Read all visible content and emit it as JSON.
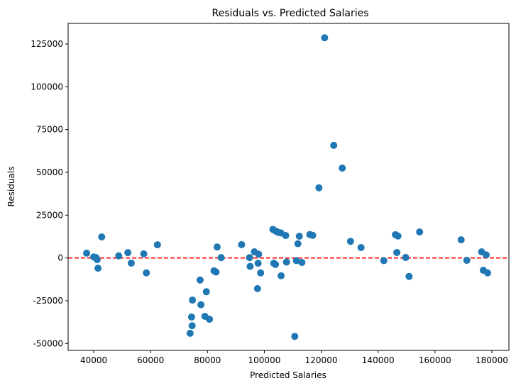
{
  "chart_data": {
    "type": "scatter",
    "title": "Residuals vs. Predicted Salaries",
    "xlabel": "Predicted Salaries",
    "ylabel": "Residuals",
    "xlim": [
      31000,
      186000
    ],
    "ylim": [
      -54000,
      137000
    ],
    "xticks": [
      40000,
      60000,
      80000,
      100000,
      120000,
      140000,
      160000,
      180000
    ],
    "yticks": [
      -50000,
      -25000,
      0,
      25000,
      50000,
      75000,
      100000,
      125000
    ],
    "grid": false,
    "legend": "none",
    "point_color": "#1f77b4",
    "reference_line": {
      "y": 0,
      "color": "#ff0000",
      "style": "dashed"
    },
    "points": [
      {
        "x": 37500,
        "y": 2800
      },
      {
        "x": 40000,
        "y": 600
      },
      {
        "x": 40800,
        "y": 200
      },
      {
        "x": 41200,
        "y": -1000
      },
      {
        "x": 41500,
        "y": -6000
      },
      {
        "x": 42800,
        "y": 12300
      },
      {
        "x": 48800,
        "y": 1200
      },
      {
        "x": 52000,
        "y": 3100
      },
      {
        "x": 53200,
        "y": -3000
      },
      {
        "x": 57600,
        "y": 2400
      },
      {
        "x": 58500,
        "y": -8700
      },
      {
        "x": 62400,
        "y": 7700
      },
      {
        "x": 73900,
        "y": -44000
      },
      {
        "x": 74400,
        "y": -34500
      },
      {
        "x": 74600,
        "y": -39600
      },
      {
        "x": 74700,
        "y": -24600
      },
      {
        "x": 77400,
        "y": -12900
      },
      {
        "x": 77700,
        "y": -27300
      },
      {
        "x": 79100,
        "y": -34100
      },
      {
        "x": 79600,
        "y": -19700
      },
      {
        "x": 80700,
        "y": -35800
      },
      {
        "x": 82300,
        "y": -7500
      },
      {
        "x": 83000,
        "y": -8200
      },
      {
        "x": 83400,
        "y": 6400
      },
      {
        "x": 84800,
        "y": 200
      },
      {
        "x": 92000,
        "y": 7800
      },
      {
        "x": 94800,
        "y": 200
      },
      {
        "x": 95000,
        "y": -4900
      },
      {
        "x": 96500,
        "y": 3600
      },
      {
        "x": 97600,
        "y": -17900
      },
      {
        "x": 97800,
        "y": -3100
      },
      {
        "x": 98000,
        "y": 2200
      },
      {
        "x": 98700,
        "y": -8700
      },
      {
        "x": 103000,
        "y": 16700
      },
      {
        "x": 103300,
        "y": -3100
      },
      {
        "x": 103900,
        "y": -3800
      },
      {
        "x": 104000,
        "y": 15700
      },
      {
        "x": 104800,
        "y": 15000
      },
      {
        "x": 105800,
        "y": 14600
      },
      {
        "x": 105900,
        "y": -10400
      },
      {
        "x": 107500,
        "y": 13100
      },
      {
        "x": 107800,
        "y": -2400
      },
      {
        "x": 110700,
        "y": -45800
      },
      {
        "x": 111300,
        "y": -1600
      },
      {
        "x": 111800,
        "y": 8300
      },
      {
        "x": 112300,
        "y": 12700
      },
      {
        "x": 113200,
        "y": -2600
      },
      {
        "x": 116000,
        "y": 13700
      },
      {
        "x": 117000,
        "y": 13200
      },
      {
        "x": 119200,
        "y": 41000
      },
      {
        "x": 121200,
        "y": 128600
      },
      {
        "x": 124400,
        "y": 65800
      },
      {
        "x": 127400,
        "y": 52500
      },
      {
        "x": 130300,
        "y": 9700
      },
      {
        "x": 134000,
        "y": 6100
      },
      {
        "x": 142000,
        "y": -1600
      },
      {
        "x": 146100,
        "y": 13600
      },
      {
        "x": 146600,
        "y": 3200
      },
      {
        "x": 147000,
        "y": 12800
      },
      {
        "x": 149700,
        "y": 300
      },
      {
        "x": 150900,
        "y": -10800
      },
      {
        "x": 154600,
        "y": 15200
      },
      {
        "x": 169200,
        "y": 10600
      },
      {
        "x": 171200,
        "y": -1400
      },
      {
        "x": 176400,
        "y": 3600
      },
      {
        "x": 177000,
        "y": -7200
      },
      {
        "x": 178000,
        "y": 1800
      },
      {
        "x": 178500,
        "y": -8700
      }
    ]
  }
}
